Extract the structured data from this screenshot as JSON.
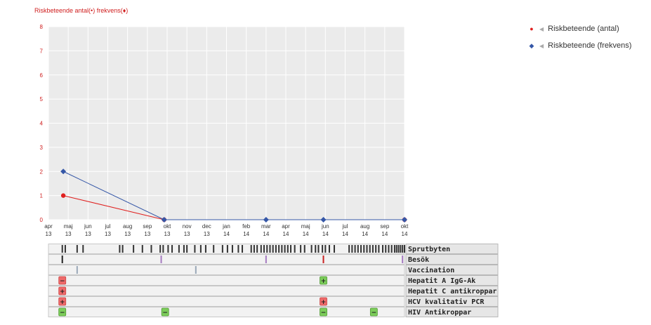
{
  "title": "Riskbeteende antal(•) frekvens(♦)",
  "legend": [
    {
      "label": "Riskbeteende (antal)",
      "color": "#e0201f",
      "marker": "●",
      "caret_icon": "caret-left-icon"
    },
    {
      "label": "Riskbeteende (frekvens)",
      "color": "#3557a7",
      "marker": "◆",
      "caret_icon": "caret-left-icon"
    }
  ],
  "chart_data": {
    "type": "line",
    "title": "Riskbeteende antal(•) frekvens(♦)",
    "x_ticks": [
      {
        "month": "apr",
        "year": "13"
      },
      {
        "month": "maj",
        "year": "13"
      },
      {
        "month": "jun",
        "year": "13"
      },
      {
        "month": "jul",
        "year": "13"
      },
      {
        "month": "aug",
        "year": "13"
      },
      {
        "month": "sep",
        "year": "13"
      },
      {
        "month": "okt",
        "year": "13"
      },
      {
        "month": "nov",
        "year": "13"
      },
      {
        "month": "dec",
        "year": "13"
      },
      {
        "month": "jan",
        "year": "14"
      },
      {
        "month": "feb",
        "year": "14"
      },
      {
        "month": "mar",
        "year": "14"
      },
      {
        "month": "apr",
        "year": "14"
      },
      {
        "month": "maj",
        "year": "14"
      },
      {
        "month": "jun",
        "year": "14"
      },
      {
        "month": "jul",
        "year": "14"
      },
      {
        "month": "aug",
        "year": "14"
      },
      {
        "month": "sep",
        "year": "14"
      },
      {
        "month": "okt",
        "year": "14"
      }
    ],
    "xlim": [
      0,
      18
    ],
    "ylim": [
      0,
      8
    ],
    "y_ticks": [
      0,
      1,
      2,
      3,
      4,
      5,
      6,
      7,
      8
    ],
    "grid": true,
    "legend_position": "top-right",
    "series": [
      {
        "name": "Riskbeteende (antal)",
        "color": "#e0201f",
        "marker": "circle",
        "points": [
          {
            "x": 0.75,
            "y": 1
          },
          {
            "x": 5.85,
            "y": 0
          },
          {
            "x": 18,
            "y": 0
          }
        ]
      },
      {
        "name": "Riskbeteende (frekvens)",
        "color": "#3557a7",
        "marker": "diamond",
        "points": [
          {
            "x": 0.75,
            "y": 2
          },
          {
            "x": 5.85,
            "y": 0
          },
          {
            "x": 11,
            "y": 0
          },
          {
            "x": 13.9,
            "y": 0
          },
          {
            "x": 18,
            "y": 0
          }
        ]
      }
    ]
  },
  "timeline": {
    "rows": [
      {
        "label": "Sprutbyten",
        "ticks": [
          {
            "x": 0.7,
            "color": "#333"
          },
          {
            "x": 0.85,
            "color": "#333"
          },
          {
            "x": 1.45,
            "color": "#333"
          },
          {
            "x": 1.75,
            "color": "#333"
          },
          {
            "x": 3.6,
            "color": "#333"
          },
          {
            "x": 3.75,
            "color": "#333"
          },
          {
            "x": 4.3,
            "color": "#333"
          },
          {
            "x": 4.75,
            "color": "#333"
          },
          {
            "x": 5.2,
            "color": "#333"
          },
          {
            "x": 5.65,
            "color": "#333"
          },
          {
            "x": 5.8,
            "color": "#333"
          },
          {
            "x": 6.05,
            "color": "#333"
          },
          {
            "x": 6.25,
            "color": "#333"
          },
          {
            "x": 6.6,
            "color": "#333"
          },
          {
            "x": 6.85,
            "color": "#333"
          },
          {
            "x": 7.0,
            "color": "#333"
          },
          {
            "x": 7.4,
            "color": "#333"
          },
          {
            "x": 7.7,
            "color": "#333"
          },
          {
            "x": 7.95,
            "color": "#333"
          },
          {
            "x": 8.35,
            "color": "#333"
          },
          {
            "x": 8.8,
            "color": "#333"
          },
          {
            "x": 9.05,
            "color": "#333"
          },
          {
            "x": 9.3,
            "color": "#333"
          },
          {
            "x": 9.6,
            "color": "#333"
          },
          {
            "x": 9.8,
            "color": "#333"
          },
          {
            "x": 10.25,
            "color": "#333"
          },
          {
            "x": 10.4,
            "color": "#333"
          },
          {
            "x": 10.55,
            "color": "#333"
          },
          {
            "x": 10.75,
            "color": "#333"
          },
          {
            "x": 10.9,
            "color": "#333"
          },
          {
            "x": 11.05,
            "color": "#333"
          },
          {
            "x": 11.2,
            "color": "#333"
          },
          {
            "x": 11.35,
            "color": "#333"
          },
          {
            "x": 11.5,
            "color": "#333"
          },
          {
            "x": 11.65,
            "color": "#333"
          },
          {
            "x": 11.8,
            "color": "#333"
          },
          {
            "x": 11.95,
            "color": "#333"
          },
          {
            "x": 12.1,
            "color": "#333"
          },
          {
            "x": 12.25,
            "color": "#333"
          },
          {
            "x": 12.45,
            "color": "#333"
          },
          {
            "x": 12.75,
            "color": "#333"
          },
          {
            "x": 12.95,
            "color": "#333"
          },
          {
            "x": 13.3,
            "color": "#333"
          },
          {
            "x": 13.5,
            "color": "#333"
          },
          {
            "x": 13.65,
            "color": "#333"
          },
          {
            "x": 13.85,
            "color": "#333"
          },
          {
            "x": 14.0,
            "color": "#333"
          },
          {
            "x": 14.2,
            "color": "#333"
          },
          {
            "x": 14.45,
            "color": "#333"
          },
          {
            "x": 15.2,
            "color": "#333"
          },
          {
            "x": 15.35,
            "color": "#333"
          },
          {
            "x": 15.5,
            "color": "#333"
          },
          {
            "x": 15.65,
            "color": "#333"
          },
          {
            "x": 15.8,
            "color": "#333"
          },
          {
            "x": 15.95,
            "color": "#333"
          },
          {
            "x": 16.1,
            "color": "#333"
          },
          {
            "x": 16.25,
            "color": "#333"
          },
          {
            "x": 16.4,
            "color": "#333"
          },
          {
            "x": 16.55,
            "color": "#333"
          },
          {
            "x": 16.7,
            "color": "#333"
          },
          {
            "x": 16.9,
            "color": "#333"
          },
          {
            "x": 17.05,
            "color": "#333"
          },
          {
            "x": 17.2,
            "color": "#333"
          },
          {
            "x": 17.35,
            "color": "#333"
          },
          {
            "x": 17.5,
            "color": "#333"
          },
          {
            "x": 17.6,
            "color": "#333"
          },
          {
            "x": 17.7,
            "color": "#333"
          },
          {
            "x": 17.8,
            "color": "#333"
          },
          {
            "x": 17.9,
            "color": "#333"
          },
          {
            "x": 18.0,
            "color": "#333"
          }
        ],
        "badges": []
      },
      {
        "label": "Besök",
        "ticks": [
          {
            "x": 0.7,
            "color": "#222"
          },
          {
            "x": 5.7,
            "color": "#a57bc0"
          },
          {
            "x": 11.0,
            "color": "#a57bc0"
          },
          {
            "x": 13.9,
            "color": "#c82020"
          },
          {
            "x": 17.9,
            "color": "#a57bc0"
          }
        ],
        "badges": []
      },
      {
        "label": "Vaccination",
        "ticks": [
          {
            "x": 1.45,
            "color": "#9aa8b8"
          },
          {
            "x": 7.45,
            "color": "#9aa8b8"
          }
        ],
        "badges": []
      },
      {
        "label": "Hepatit A IgG-Ak",
        "ticks": [],
        "badges": [
          {
            "x": 0.7,
            "sign": "−",
            "kind": "neg"
          },
          {
            "x": 13.9,
            "sign": "+",
            "kind": "pos"
          }
        ]
      },
      {
        "label": "Hepatit C antikroppar",
        "ticks": [],
        "badges": [
          {
            "x": 0.7,
            "sign": "+",
            "kind": "neg"
          }
        ]
      },
      {
        "label": "HCV kvalitativ PCR",
        "ticks": [],
        "badges": [
          {
            "x": 0.7,
            "sign": "+",
            "kind": "neg"
          },
          {
            "x": 13.9,
            "sign": "+",
            "kind": "neg"
          }
        ]
      },
      {
        "label": "HIV Antikroppar",
        "ticks": [],
        "badges": [
          {
            "x": 0.7,
            "sign": "−",
            "kind": "pos"
          },
          {
            "x": 5.9,
            "sign": "−",
            "kind": "pos"
          },
          {
            "x": 13.9,
            "sign": "−",
            "kind": "pos"
          },
          {
            "x": 16.45,
            "sign": "−",
            "kind": "pos"
          }
        ]
      }
    ]
  },
  "colors": {
    "plot_bg": "#ebebeb",
    "grid": "#ffffff",
    "axis_text": "#d02020",
    "badge_neg": "#ee6a6a",
    "badge_pos": "#7ccc5a"
  }
}
